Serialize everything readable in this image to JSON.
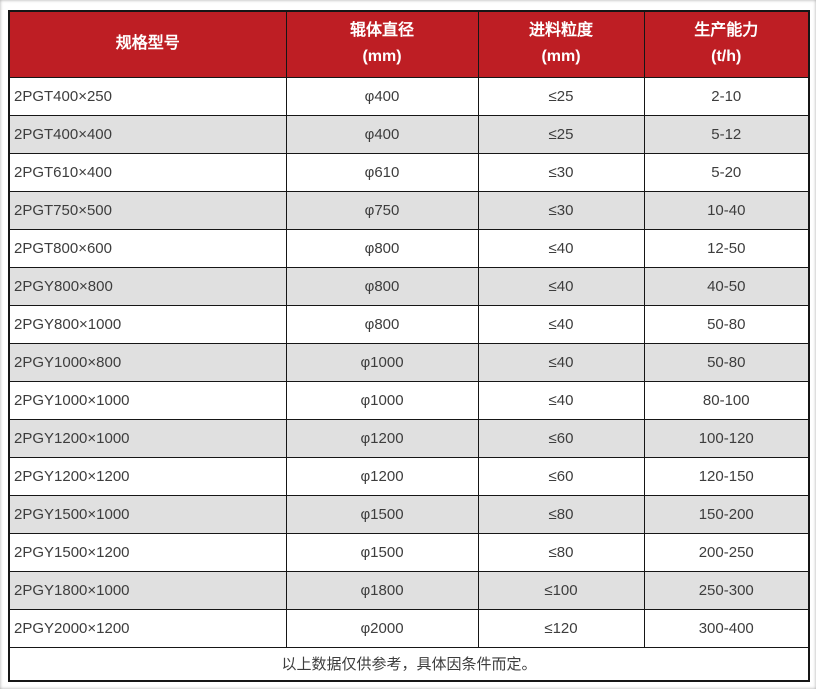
{
  "colors": {
    "header_bg": "#BE1E24",
    "header_text": "#FFFFFF",
    "row_alt_bg": "#E0E0E0",
    "row_bg": "#FFFFFF",
    "border": "#161616",
    "body_text": "#3D3D3D"
  },
  "table": {
    "columns": [
      {
        "label": "规格型号",
        "unit": ""
      },
      {
        "label": "辊体直径",
        "unit": "(mm)"
      },
      {
        "label": "进料粒度",
        "unit": "(mm)"
      },
      {
        "label": "生产能力",
        "unit": "(t/h)"
      }
    ],
    "rows": [
      [
        "2PGT400×250",
        "φ400",
        "≤25",
        "2-10"
      ],
      [
        "2PGT400×400",
        "φ400",
        "≤25",
        "5-12"
      ],
      [
        "2PGT610×400",
        "φ610",
        "≤30",
        "5-20"
      ],
      [
        "2PGT750×500",
        "φ750",
        "≤30",
        "10-40"
      ],
      [
        "2PGT800×600",
        "φ800",
        "≤40",
        "12-50"
      ],
      [
        "2PGY800×800",
        "φ800",
        "≤40",
        "40-50"
      ],
      [
        "2PGY800×1000",
        "φ800",
        "≤40",
        "50-80"
      ],
      [
        "2PGY1000×800",
        "φ1000",
        "≤40",
        "50-80"
      ],
      [
        "2PGY1000×1000",
        "φ1000",
        "≤40",
        "80-100"
      ],
      [
        "2PGY1200×1000",
        "φ1200",
        "≤60",
        "100-120"
      ],
      [
        "2PGY1200×1200",
        "φ1200",
        "≤60",
        "120-150"
      ],
      [
        "2PGY1500×1000",
        "φ1500",
        "≤80",
        "150-200"
      ],
      [
        "2PGY1500×1200",
        "φ1500",
        "≤80",
        "200-250"
      ],
      [
        "2PGY1800×1000",
        "φ1800",
        "≤100",
        "250-300"
      ],
      [
        "2PGY2000×1200",
        "φ2000",
        "≤120",
        "300-400"
      ]
    ],
    "footnote": "以上数据仅供参考，具体因条件而定。"
  }
}
